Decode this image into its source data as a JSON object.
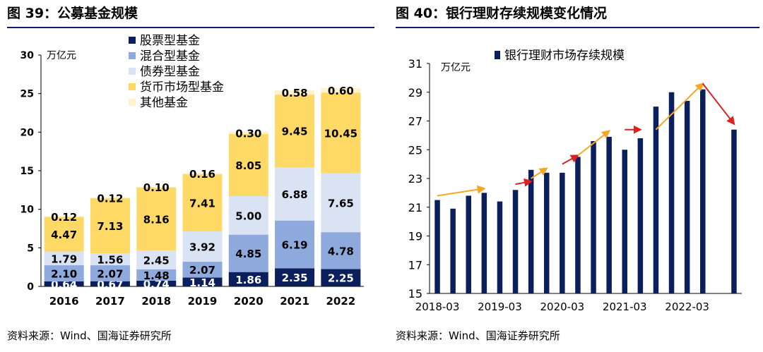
{
  "figures": [
    {
      "title": "图 39：公募基金规模",
      "source": "资料来源：Wind、国海证券研究所"
    },
    {
      "title": "图 40：银行理财存续规模变化情况",
      "source": "资料来源：Wind、国海证券研究所"
    }
  ],
  "chart_data": [
    {
      "type": "bar",
      "stacked": true,
      "title": "",
      "xlabel": "",
      "ylabel": "万亿元",
      "ylim": [
        0,
        30
      ],
      "yticks": [
        0,
        5,
        10,
        15,
        20,
        25,
        30
      ],
      "grid": false,
      "legend_position": "top-center",
      "categories": [
        "2016",
        "2017",
        "2018",
        "2019",
        "2020",
        "2021",
        "2022"
      ],
      "series": [
        {
          "name": "股票型基金",
          "color": "#0b1f5c",
          "label_color": "#ffffff",
          "values": [
            0.64,
            0.67,
            0.74,
            1.14,
            1.86,
            2.35,
            2.25
          ]
        },
        {
          "name": "混合型基金",
          "color": "#8ea9db",
          "label_color": "#000000",
          "values": [
            2.1,
            2.07,
            1.48,
            2.07,
            4.85,
            6.19,
            4.78
          ]
        },
        {
          "name": "债券型基金",
          "color": "#dae3f3",
          "label_color": "#000000",
          "values": [
            1.79,
            1.56,
            2.45,
            3.92,
            5.0,
            6.88,
            7.65
          ]
        },
        {
          "name": "货币市场型基金",
          "color": "#ffd966",
          "label_color": "#000000",
          "values": [
            4.47,
            7.13,
            8.16,
            7.41,
            8.05,
            9.45,
            10.45
          ]
        },
        {
          "name": "其他基金",
          "color": "#fff2cc",
          "label_color": "#000000",
          "values": [
            0.12,
            0.12,
            0.1,
            0.16,
            0.3,
            0.58,
            0.6
          ]
        }
      ]
    },
    {
      "type": "bar",
      "title": "",
      "xlabel": "",
      "ylabel": "万亿元",
      "ylim": [
        15,
        31
      ],
      "yticks": [
        15,
        17,
        19,
        21,
        23,
        25,
        27,
        29,
        31
      ],
      "grid": false,
      "legend_position": "top-center",
      "x_tick_labels": [
        "2018-03",
        "2019-03",
        "2020-03",
        "2021-03",
        "2022-03"
      ],
      "series": [
        {
          "name": "银行理财市场存续规模",
          "color": "#0b1f5c",
          "x": [
            "2018-03",
            "2018-06",
            "2018-09",
            "2018-12",
            "2019-03",
            "2019-06",
            "2019-09",
            "2019-12",
            "2020-03",
            "2020-06",
            "2020-09",
            "2020-12",
            "2021-03",
            "2021-06",
            "2021-09",
            "2021-12",
            "2022-03",
            "2022-06",
            "2022-09",
            "2022-12"
          ],
          "values": [
            21.5,
            20.9,
            21.8,
            22.0,
            21.4,
            22.2,
            23.6,
            23.4,
            23.4,
            24.5,
            25.6,
            25.9,
            25.0,
            25.8,
            28.0,
            29.0,
            28.4,
            29.2,
            null,
            26.4
          ]
        }
      ],
      "annotations": [
        {
          "type": "arrow",
          "color": "#f5a623",
          "from": [
            "2018-03",
            21.8
          ],
          "to": [
            "2018-12",
            22.3
          ]
        },
        {
          "type": "arrow",
          "color": "#e02020",
          "from": [
            "2019-06",
            22.6
          ],
          "to": [
            "2019-09",
            22.8
          ]
        },
        {
          "type": "arrow",
          "color": "#f5a623",
          "from": [
            "2019-09",
            23.0
          ],
          "to": [
            "2019-12",
            23.7
          ]
        },
        {
          "type": "arrow",
          "color": "#e02020",
          "from": [
            "2020-03",
            24.0
          ],
          "to": [
            "2020-06",
            24.6
          ]
        },
        {
          "type": "arrow",
          "color": "#f5a623",
          "from": [
            "2020-06",
            24.6
          ],
          "to": [
            "2020-12",
            26.3
          ]
        },
        {
          "type": "arrow",
          "color": "#e02020",
          "from": [
            "2021-03",
            26.4
          ],
          "to": [
            "2021-06",
            26.4
          ]
        },
        {
          "type": "arrow",
          "color": "#f5a623",
          "from": [
            "2021-09",
            26.4
          ],
          "to": [
            "2022-06",
            29.6
          ]
        },
        {
          "type": "arrow",
          "color": "#e02020",
          "from": [
            "2022-06",
            29.6
          ],
          "to": [
            "2022-12",
            26.8
          ]
        }
      ]
    }
  ]
}
